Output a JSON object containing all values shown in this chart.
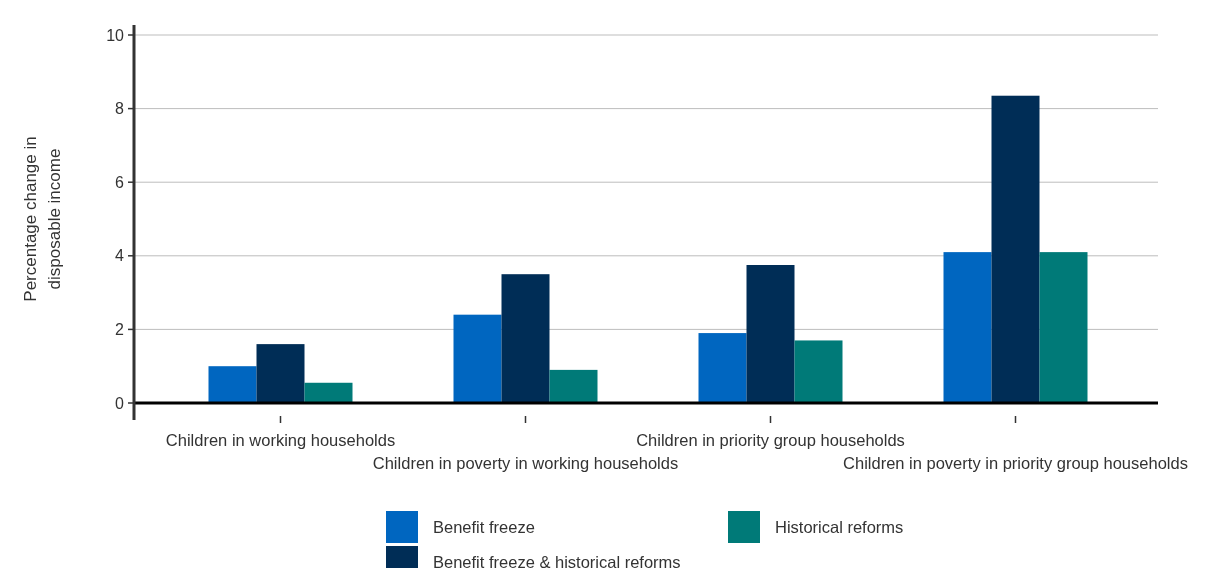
{
  "chart_data": {
    "type": "bar",
    "ylabel": "Percentage change in disposable income",
    "categories": [
      "Children in working households",
      "Children in poverty in working households",
      "Children in priority group households",
      "Children in poverty in priority group households"
    ],
    "series": [
      {
        "name": "Benefit freeze",
        "color": "#0066c0",
        "values": [
          1.0,
          2.4,
          1.9,
          4.1
        ]
      },
      {
        "name": "Benefit freeze & historical reforms",
        "color": "#002d56",
        "values": [
          1.6,
          3.5,
          3.75,
          8.35
        ]
      },
      {
        "name": "Historical reforms",
        "color": "#007a78",
        "values": [
          0.55,
          0.9,
          1.7,
          4.1
        ]
      }
    ],
    "ylim": [
      0,
      10
    ],
    "yticks": [
      0,
      2,
      4,
      6,
      8,
      10
    ],
    "grid": "y",
    "legend": "bottom"
  }
}
